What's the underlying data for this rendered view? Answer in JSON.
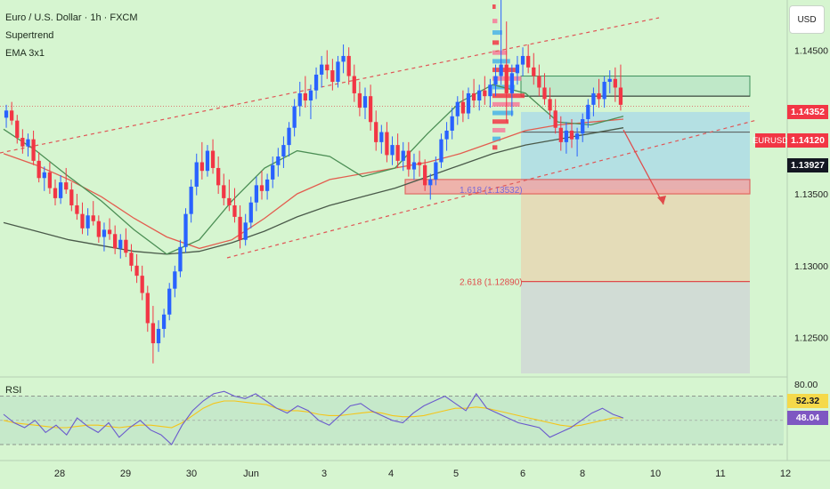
{
  "header": {
    "title": "Euro / U.S. Dollar · 1h · FXCM",
    "indicator_1": "Supertrend",
    "indicator_2": "EMA 3x1"
  },
  "currency_button": "USD",
  "symbol_tag": "EURUSD",
  "rsi_label": "RSI",
  "price_tags": [
    {
      "label": "1.14352",
      "bg": "#f23645",
      "fg": "#ffffff"
    },
    {
      "label": "1.14120",
      "bg": "#f23645",
      "fg": "#ffffff"
    },
    {
      "label": "1.13927",
      "bg": "#131722",
      "fg": "#ffffff"
    },
    {
      "label": "52.32",
      "bg": "#f5d94a",
      "fg": "#131722"
    },
    {
      "label": "48.04",
      "bg": "#7e57c2",
      "fg": "#ffffff"
    }
  ],
  "fib_labels": {
    "fib_1618": "1.618 (1.13532)",
    "fib_2618": "2.618 (1.12890)"
  },
  "colors": {
    "background": "#d6f5d0",
    "up_candle": "#2962ff",
    "down_candle": "#f23645",
    "ema_red": "#e35d4f",
    "ema_green": "#4c8f55",
    "ema_dark": "#4a5a4a",
    "rsi_line": "#6a5acd",
    "rsi_ma": "#f5c518"
  },
  "chart_data": {
    "type": "candlestick",
    "price_axis": {
      "ticks": [
        "1.14500",
        "1.13500",
        "1.13000",
        "1.12500"
      ],
      "range": [
        1.1225,
        1.148
      ]
    },
    "rsi_axis": {
      "ticks": [
        "80.00"
      ],
      "range": [
        30,
        80
      ]
    },
    "time_axis": {
      "ticks": [
        "28",
        "29",
        "30",
        "Jun",
        "3",
        "4",
        "5",
        "6",
        "8",
        "10",
        "11",
        "12"
      ]
    },
    "candles": [
      [
        1.1403,
        1.1412,
        1.1396,
        1.1408
      ],
      [
        1.1408,
        1.1414,
        1.1398,
        1.1401
      ],
      [
        1.1401,
        1.1405,
        1.1385,
        1.1389
      ],
      [
        1.1389,
        1.1395,
        1.1378,
        1.1383
      ],
      [
        1.1383,
        1.1392,
        1.1376,
        1.1388
      ],
      [
        1.1388,
        1.1394,
        1.137,
        1.1373
      ],
      [
        1.1373,
        1.1379,
        1.1358,
        1.1361
      ],
      [
        1.1361,
        1.1369,
        1.1352,
        1.1365
      ],
      [
        1.1365,
        1.1372,
        1.135,
        1.1354
      ],
      [
        1.1354,
        1.136,
        1.1342,
        1.1347
      ],
      [
        1.1347,
        1.1363,
        1.1343,
        1.1358
      ],
      [
        1.1358,
        1.1368,
        1.135,
        1.1353
      ],
      [
        1.1353,
        1.1358,
        1.1338,
        1.1342
      ],
      [
        1.1342,
        1.135,
        1.1332,
        1.1336
      ],
      [
        1.1336,
        1.1344,
        1.1322,
        1.1326
      ],
      [
        1.1326,
        1.134,
        1.1321,
        1.1335
      ],
      [
        1.1335,
        1.1345,
        1.1328,
        1.1331
      ],
      [
        1.1331,
        1.1335,
        1.1316,
        1.132
      ],
      [
        1.132,
        1.133,
        1.131,
        1.1325
      ],
      [
        1.1325,
        1.1333,
        1.1318,
        1.1322
      ],
      [
        1.1322,
        1.1328,
        1.1308,
        1.1312
      ],
      [
        1.1312,
        1.1322,
        1.1305,
        1.1318
      ],
      [
        1.1318,
        1.1326,
        1.1306,
        1.1309
      ],
      [
        1.1309,
        1.1315,
        1.1296,
        1.13
      ],
      [
        1.13,
        1.1308,
        1.1288,
        1.1293
      ],
      [
        1.1293,
        1.13,
        1.1276,
        1.1281
      ],
      [
        1.1281,
        1.1286,
        1.1254,
        1.126
      ],
      [
        1.126,
        1.1272,
        1.1232,
        1.1246
      ],
      [
        1.1246,
        1.1262,
        1.124,
        1.1256
      ],
      [
        1.1256,
        1.127,
        1.125,
        1.1266
      ],
      [
        1.1266,
        1.1288,
        1.1262,
        1.1284
      ],
      [
        1.1284,
        1.13,
        1.1278,
        1.1296
      ],
      [
        1.1296,
        1.1318,
        1.1292,
        1.1313
      ],
      [
        1.1313,
        1.134,
        1.1309,
        1.1336
      ],
      [
        1.1336,
        1.136,
        1.133,
        1.1355
      ],
      [
        1.1355,
        1.1378,
        1.1349,
        1.1372
      ],
      [
        1.1372,
        1.1386,
        1.136,
        1.1366
      ],
      [
        1.1366,
        1.1384,
        1.1362,
        1.138
      ],
      [
        1.138,
        1.1388,
        1.1364,
        1.1368
      ],
      [
        1.1368,
        1.1376,
        1.135,
        1.1356
      ],
      [
        1.1356,
        1.1364,
        1.1342,
        1.1347
      ],
      [
        1.1347,
        1.136,
        1.1338,
        1.1342
      ],
      [
        1.1342,
        1.1354,
        1.133,
        1.1334
      ],
      [
        1.1334,
        1.1342,
        1.1312,
        1.1318
      ],
      [
        1.1318,
        1.1336,
        1.1314,
        1.133
      ],
      [
        1.133,
        1.1348,
        1.1326,
        1.1344
      ],
      [
        1.1344,
        1.1362,
        1.1338,
        1.1356
      ],
      [
        1.1356,
        1.1366,
        1.1346,
        1.1352
      ],
      [
        1.1352,
        1.1364,
        1.1346,
        1.136
      ],
      [
        1.136,
        1.1376,
        1.1354,
        1.137
      ],
      [
        1.137,
        1.1382,
        1.1362,
        1.1376
      ],
      [
        1.1376,
        1.139,
        1.1368,
        1.1384
      ],
      [
        1.1384,
        1.14,
        1.1376,
        1.1396
      ],
      [
        1.1396,
        1.1416,
        1.139,
        1.1411
      ],
      [
        1.1411,
        1.1428,
        1.1404,
        1.142
      ],
      [
        1.142,
        1.1432,
        1.141,
        1.1415
      ],
      [
        1.1415,
        1.1426,
        1.1402,
        1.1422
      ],
      [
        1.1422,
        1.1438,
        1.1416,
        1.1433
      ],
      [
        1.1433,
        1.1446,
        1.1424,
        1.144
      ],
      [
        1.144,
        1.145,
        1.143,
        1.1436
      ],
      [
        1.1436,
        1.1444,
        1.1422,
        1.1428
      ],
      [
        1.1428,
        1.1446,
        1.1424,
        1.1442
      ],
      [
        1.1442,
        1.1454,
        1.1434,
        1.1446
      ],
      [
        1.1446,
        1.1452,
        1.1426,
        1.1432
      ],
      [
        1.1432,
        1.144,
        1.1414,
        1.142
      ],
      [
        1.142,
        1.1428,
        1.1404,
        1.141
      ],
      [
        1.141,
        1.1424,
        1.1402,
        1.1418
      ],
      [
        1.1418,
        1.1426,
        1.1394,
        1.14
      ],
      [
        1.14,
        1.1408,
        1.138,
        1.1386
      ],
      [
        1.1386,
        1.1398,
        1.1378,
        1.1393
      ],
      [
        1.1393,
        1.14,
        1.1372,
        1.1377
      ],
      [
        1.1377,
        1.139,
        1.137,
        1.1384
      ],
      [
        1.1384,
        1.1392,
        1.1368,
        1.1373
      ],
      [
        1.1373,
        1.1386,
        1.1366,
        1.138
      ],
      [
        1.138,
        1.1386,
        1.1362,
        1.1367
      ],
      [
        1.1367,
        1.1378,
        1.136,
        1.1372
      ],
      [
        1.1372,
        1.138,
        1.1362,
        1.137
      ],
      [
        1.137,
        1.1374,
        1.1352,
        1.1356
      ],
      [
        1.1356,
        1.1364,
        1.1346,
        1.136
      ],
      [
        1.136,
        1.1376,
        1.1356,
        1.1372
      ],
      [
        1.1372,
        1.1392,
        1.1368,
        1.1388
      ],
      [
        1.1388,
        1.14,
        1.138,
        1.1394
      ],
      [
        1.1394,
        1.141,
        1.1388,
        1.1404
      ],
      [
        1.1404,
        1.1418,
        1.1398,
        1.1414
      ],
      [
        1.1414,
        1.1422,
        1.14,
        1.1406
      ],
      [
        1.1406,
        1.1424,
        1.1402,
        1.142
      ],
      [
        1.142,
        1.143,
        1.141,
        1.1415
      ],
      [
        1.1415,
        1.1426,
        1.1408,
        1.1422
      ],
      [
        1.1422,
        1.1432,
        1.1412,
        1.1418
      ],
      [
        1.1418,
        1.143,
        1.141,
        1.1426
      ],
      [
        1.1426,
        1.144,
        1.1418,
        1.1432
      ],
      [
        1.1432,
        1.15,
        1.1426,
        1.144
      ],
      [
        1.144,
        1.147,
        1.14,
        1.142
      ],
      [
        1.142,
        1.144,
        1.1404,
        1.1434
      ],
      [
        1.1434,
        1.1446,
        1.1426,
        1.144
      ],
      [
        1.144,
        1.1452,
        1.1432,
        1.1446
      ],
      [
        1.1446,
        1.1454,
        1.1434,
        1.1438
      ],
      [
        1.1438,
        1.1448,
        1.1426,
        1.1432
      ],
      [
        1.1432,
        1.144,
        1.1418,
        1.1424
      ],
      [
        1.1424,
        1.1434,
        1.1412,
        1.1416
      ],
      [
        1.1416,
        1.1424,
        1.1402,
        1.1408
      ],
      [
        1.1408,
        1.1416,
        1.1392,
        1.1396
      ],
      [
        1.1396,
        1.1404,
        1.138,
        1.1386
      ],
      [
        1.1386,
        1.14,
        1.1378,
        1.1394
      ],
      [
        1.1394,
        1.1402,
        1.1382,
        1.1388
      ],
      [
        1.1388,
        1.1396,
        1.1376,
        1.1392
      ],
      [
        1.1392,
        1.1406,
        1.1386,
        1.1402
      ],
      [
        1.1402,
        1.1416,
        1.1396,
        1.1412
      ],
      [
        1.1412,
        1.1424,
        1.1404,
        1.142
      ],
      [
        1.142,
        1.143,
        1.141,
        1.1416
      ],
      [
        1.1416,
        1.1432,
        1.141,
        1.1428
      ],
      [
        1.1428,
        1.1436,
        1.142,
        1.143
      ],
      [
        1.143,
        1.1438,
        1.1414,
        1.1424
      ],
      [
        1.1424,
        1.144,
        1.1408,
        1.1412
      ]
    ],
    "ema_red": [
      1.1378,
      1.137,
      1.136,
      1.1348,
      1.1333,
      1.132,
      1.1312,
      1.1318,
      1.1333,
      1.135,
      1.136,
      1.1364,
      1.1368,
      1.1372,
      1.1378,
      1.1386,
      1.1394,
      1.1398,
      1.14,
      1.1402
    ],
    "ema_green": [
      1.1395,
      1.138,
      1.1362,
      1.1345,
      1.1325,
      1.1308,
      1.1318,
      1.1345,
      1.1368,
      1.138,
      1.1376,
      1.1362,
      1.1368,
      1.1392,
      1.1414,
      1.1426,
      1.142,
      1.14,
      1.1398,
      1.1404
    ],
    "ema_dark": [
      1.133,
      1.1324,
      1.1318,
      1.1314,
      1.131,
      1.1308,
      1.131,
      1.1316,
      1.1324,
      1.1334,
      1.1342,
      1.1348,
      1.1354,
      1.1362,
      1.137,
      1.1378,
      1.1384,
      1.1388,
      1.1392,
      1.1396
    ],
    "rsi": [
      55,
      48,
      44,
      50,
      40,
      46,
      38,
      52,
      45,
      40,
      48,
      36,
      44,
      50,
      42,
      38,
      30,
      46,
      58,
      66,
      72,
      74,
      70,
      68,
      72,
      66,
      60,
      56,
      62,
      58,
      50,
      46,
      54,
      62,
      64,
      58,
      54,
      50,
      48,
      56,
      62,
      66,
      70,
      64,
      58,
      72,
      60,
      56,
      52,
      48,
      46,
      44,
      36,
      40,
      44,
      50,
      56,
      60,
      55,
      52
    ],
    "rsi_ma": [
      50,
      48,
      47,
      46,
      45,
      44,
      44,
      45,
      46,
      46,
      45,
      44,
      45,
      46,
      46,
      45,
      44,
      48,
      54,
      60,
      64,
      66,
      66,
      65,
      64,
      63,
      60,
      58,
      58,
      57,
      55,
      54,
      54,
      55,
      56,
      57,
      56,
      54,
      53,
      53,
      54,
      56,
      58,
      60,
      60,
      61,
      60,
      58,
      56,
      54,
      52,
      50,
      48,
      46,
      45,
      46,
      48,
      50,
      52,
      52
    ]
  }
}
